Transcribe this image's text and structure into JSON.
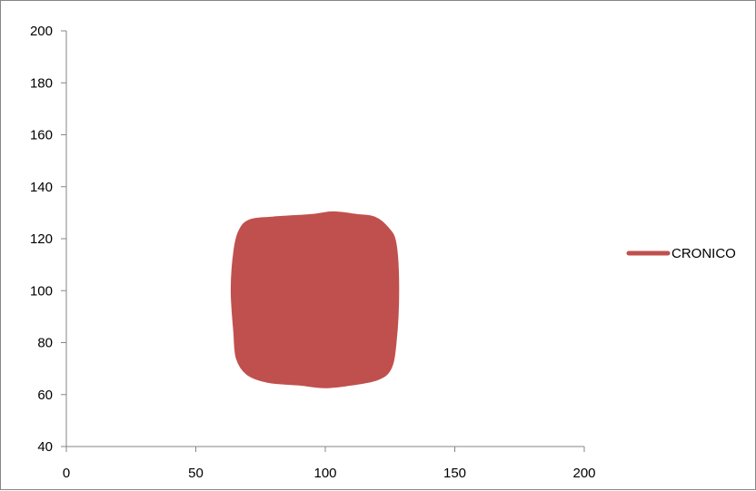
{
  "chart_data": {
    "type": "area",
    "title": "",
    "xlabel": "",
    "ylabel": "",
    "xlim": [
      0,
      200
    ],
    "ylim": [
      40,
      200
    ],
    "x_ticks": [
      0,
      50,
      100,
      150,
      200
    ],
    "y_ticks": [
      40,
      60,
      80,
      100,
      120,
      140,
      160,
      180,
      200
    ],
    "grid": false,
    "legend_position": "right",
    "series": [
      {
        "name": "CRONICO",
        "color": "#C0504D",
        "points": [
          [
            65,
            84
          ],
          [
            64,
            100
          ],
          [
            65,
            115
          ],
          [
            67,
            123
          ],
          [
            71,
            127
          ],
          [
            80,
            128
          ],
          [
            95,
            129
          ],
          [
            103,
            130
          ],
          [
            112,
            129
          ],
          [
            119,
            128
          ],
          [
            124,
            124
          ],
          [
            127,
            118
          ],
          [
            128,
            100
          ],
          [
            127,
            80
          ],
          [
            125,
            70
          ],
          [
            120,
            66
          ],
          [
            110,
            64
          ],
          [
            100,
            63
          ],
          [
            90,
            64
          ],
          [
            78,
            65
          ],
          [
            70,
            68
          ],
          [
            66,
            74
          ]
        ]
      }
    ]
  }
}
